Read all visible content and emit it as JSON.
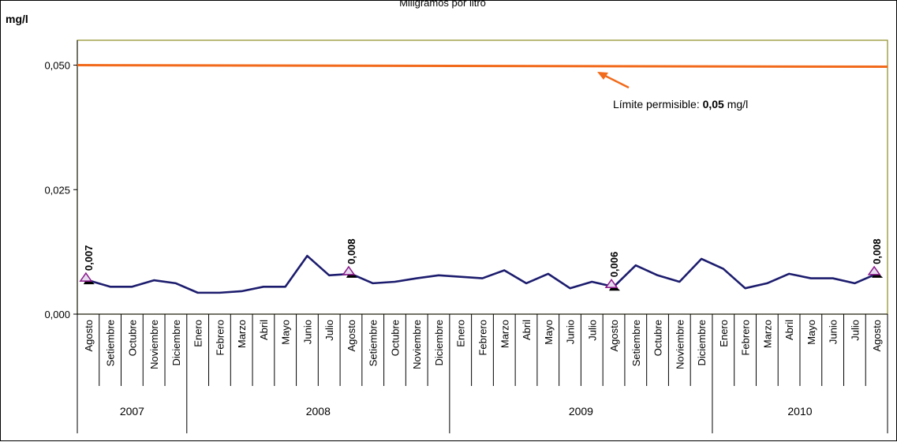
{
  "chart_data": {
    "type": "line",
    "subtitle": "Miligramos  por  litro",
    "ylabel": "mg/l",
    "ylim": [
      0,
      0.055
    ],
    "yticks": [
      {
        "value": 0.0,
        "label": "0,000"
      },
      {
        "value": 0.025,
        "label": "0,025"
      },
      {
        "value": 0.05,
        "label": "0,050"
      }
    ],
    "categories": [
      "Agosto",
      "Setiembre",
      "Octubre",
      "Noviembre",
      "Diciembre",
      "Enero",
      "Febrero",
      "Marzo",
      "Abril",
      "Mayo",
      "Junio",
      "Julio",
      "Agosto",
      "Setiembre",
      "Octubre",
      "Noviembre",
      "Diciembre",
      "Enero",
      "Febrero",
      "Marzo",
      "Abril",
      "Mayo",
      "Junio",
      "Julio",
      "Agosto",
      "Setiembre",
      "Octubre",
      "Noviembre",
      "Diciembre",
      "Enero",
      "Febrero",
      "Marzo",
      "Abril",
      "Mayo",
      "Junio",
      "Julio",
      "Agosto"
    ],
    "years": [
      {
        "label": "2007",
        "start": 0,
        "count": 5
      },
      {
        "label": "2008",
        "start": 5,
        "count": 12
      },
      {
        "label": "2009",
        "start": 17,
        "count": 12
      },
      {
        "label": "2010",
        "start": 29,
        "count": 8
      }
    ],
    "series": [
      {
        "color": "#1c1c6e",
        "values": [
          0.0068,
          0.0055,
          0.0055,
          0.0068,
          0.0062,
          0.0043,
          0.0043,
          0.0046,
          0.0055,
          0.0055,
          0.0117,
          0.0078,
          0.0081,
          0.0062,
          0.0065,
          0.0072,
          0.0078,
          0.0075,
          0.0072,
          0.0088,
          0.0062,
          0.0081,
          0.0052,
          0.0065,
          0.0055,
          0.0098,
          0.0078,
          0.0065,
          0.0111,
          0.0091,
          0.0052,
          0.0062,
          0.0081,
          0.0072,
          0.0072,
          0.0062,
          0.0081
        ]
      }
    ],
    "limit": {
      "value": 0.05,
      "color": "#f26a1b",
      "label_prefix": "Límite permisible: ",
      "label_value": "0,05",
      "label_suffix": " mg/l"
    },
    "data_labels": [
      {
        "index": 0,
        "text": "0,007"
      },
      {
        "index": 12,
        "text": "0,008"
      },
      {
        "index": 24,
        "text": "0,006"
      },
      {
        "index": 36,
        "text": "0,008"
      }
    ],
    "plot_border_color": "#8b8b1e",
    "marker_fill": "#e6dcf0",
    "marker_stroke": "#8b1a8b"
  }
}
